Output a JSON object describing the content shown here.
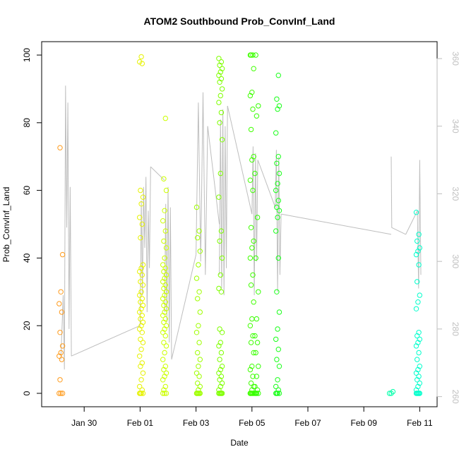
{
  "chart_data": {
    "type": "scatter",
    "title": "ATOM2 Southbound Prob_ConvInf_Land",
    "xlabel": "Date",
    "ylabel": "Prob_ConvInf_Land",
    "x_ticks": [
      "Jan 30",
      "Feb 01",
      "Feb 03",
      "Feb 05",
      "Feb 07",
      "Feb 09",
      "Feb 11"
    ],
    "ylim": [
      0,
      100
    ],
    "y_ticks": [
      "0",
      "20",
      "40",
      "60",
      "80",
      "100"
    ],
    "y2_ticks": [
      "260",
      "280",
      "300",
      "320",
      "340",
      "360"
    ],
    "y2lim": [
      257,
      365
    ],
    "grid": false,
    "legend": "none",
    "point_color_scale": [
      "#ff8c00",
      "#ffff00",
      "#00ff00",
      "#00ffcc"
    ],
    "secondary_line_color": "#bebebe",
    "clusters": [
      {
        "x": "2014-01-29 04:00",
        "color": "#ff9a1a",
        "y": [
          0,
          0,
          0,
          4,
          10,
          11,
          12,
          14,
          18,
          24,
          26.5,
          30,
          41,
          72.6
        ]
      },
      {
        "x": "2014-02-01 01:00",
        "color": "#e6f200",
        "y": [
          0,
          0,
          0,
          0,
          1,
          2,
          4,
          6,
          8,
          9,
          11,
          13,
          15,
          16,
          18,
          19,
          20,
          21,
          22,
          23,
          24,
          25,
          26,
          27,
          28,
          29,
          30,
          32,
          33,
          35,
          36,
          37,
          38,
          46,
          50,
          52,
          56,
          58,
          60,
          97.5,
          98,
          99.5
        ]
      },
      {
        "x": "2014-02-01 21:00",
        "color": "#ccff00",
        "y": [
          0,
          0,
          0,
          1,
          2,
          4,
          5,
          6,
          7,
          8,
          10,
          12,
          14,
          15,
          17,
          18,
          19,
          20,
          21,
          22,
          23,
          24,
          25,
          26,
          27,
          28,
          29,
          30,
          31,
          32,
          33,
          34,
          35,
          36,
          37,
          38,
          40,
          43,
          45,
          48,
          51,
          54,
          60,
          63.4,
          81.3
        ]
      },
      {
        "x": "2014-02-03 02:00",
        "color": "#9fff00",
        "y": [
          0,
          0,
          0,
          0,
          0,
          0,
          1,
          2,
          3,
          5,
          6,
          8,
          10,
          12,
          15,
          18,
          20,
          24,
          28,
          30,
          34,
          38,
          42,
          46,
          48,
          55
        ]
      },
      {
        "x": "2014-02-03 21:00",
        "color": "#7fff00",
        "y": [
          0,
          0,
          0,
          0,
          0,
          1,
          2,
          3,
          4,
          5,
          6,
          7,
          8,
          10,
          12,
          14,
          15,
          18,
          19,
          30,
          31,
          35,
          40,
          45,
          48,
          58,
          65,
          75,
          80,
          83,
          86,
          88,
          90,
          92,
          93,
          94,
          95,
          96,
          97,
          98,
          99
        ]
      },
      {
        "x": "2014-02-05 00:00",
        "color": "#40ff00",
        "y": [
          0,
          0,
          0,
          0,
          0,
          0,
          1,
          2,
          3,
          5,
          7,
          8,
          12,
          15,
          17,
          20,
          22,
          27,
          32,
          35,
          40,
          43,
          45,
          49,
          60,
          63,
          69,
          70,
          78,
          84,
          88,
          89,
          96,
          100,
          100,
          100
        ]
      },
      {
        "x": "2014-02-05 04:00",
        "color": "#33ff00",
        "y": [
          0,
          0,
          0,
          0,
          1,
          2,
          5,
          8,
          12,
          15,
          17,
          22,
          30,
          40,
          52,
          65,
          82,
          85,
          100
        ]
      },
      {
        "x": "2014-02-05 22:00",
        "color": "#1aff1a",
        "y": [
          0,
          0,
          0,
          0,
          1,
          2,
          4,
          8,
          10,
          13,
          16,
          19,
          24,
          30,
          40,
          48,
          52,
          54,
          55,
          57,
          60,
          62,
          65,
          68,
          70,
          77,
          84,
          85,
          87,
          94
        ]
      },
      {
        "x": "2014-02-09 23:30",
        "color": "#00ffaa",
        "y": [
          0,
          0,
          0.5
        ]
      },
      {
        "x": "2014-02-10 22:30",
        "color": "#00ffcc",
        "y": [
          0,
          0,
          0,
          0,
          0,
          1,
          2,
          3,
          4,
          5,
          6,
          7,
          8,
          10,
          12,
          14,
          15,
          16,
          17,
          18,
          25,
          27,
          29,
          33,
          38,
          41,
          42,
          43,
          45,
          47,
          53.5
        ]
      }
    ],
    "secondary_line": {
      "axis": "y2",
      "segments": [
        {
          "x": [
            "2014-01-29 04:00",
            "2014-01-29 06:00",
            "2014-01-29 07:00",
            "2014-01-29 08:00",
            "2014-01-29 09:00",
            "2014-01-29 10:00",
            "2014-01-29 11:00",
            "2014-01-29 12:00",
            "2014-01-29 13:00"
          ],
          "y": [
            271,
            290,
            268,
            352,
            310,
            347,
            280,
            322,
            272
          ]
        },
        {
          "x": [
            "2014-01-29 13:00",
            "2014-02-01 00:00"
          ],
          "y": [
            272,
            281
          ]
        },
        {
          "x": [
            "2014-02-01 00:00",
            "2014-02-01 01:00",
            "2014-02-01 02:00",
            "2014-02-01 03:00",
            "2014-02-01 04:00",
            "2014-02-01 05:00",
            "2014-02-01 06:00",
            "2014-02-01 07:00",
            "2014-02-01 08:00",
            "2014-02-01 09:00"
          ],
          "y": [
            281,
            318,
            290,
            322,
            304,
            325,
            285,
            315,
            298,
            328
          ]
        },
        {
          "x": [
            "2014-02-01 09:00",
            "2014-02-01 21:00"
          ],
          "y": [
            328,
            324
          ]
        },
        {
          "x": [
            "2014-02-01 21:00",
            "2014-02-01 22:00",
            "2014-02-01 23:00",
            "2014-02-02 00:00",
            "2014-02-02 01:00",
            "2014-02-02 02:00",
            "2014-02-02 03:00"
          ],
          "y": [
            285,
            317,
            282,
            322,
            276,
            316,
            271
          ]
        },
        {
          "x": [
            "2014-02-02 03:00",
            "2014-02-03 00:00"
          ],
          "y": [
            271,
            302
          ]
        },
        {
          "x": [
            "2014-02-03 00:00",
            "2014-02-03 02:00",
            "2014-02-03 04:00",
            "2014-02-03 06:00",
            "2014-02-03 08:00",
            "2014-02-03 10:00"
          ],
          "y": [
            302,
            347,
            300,
            350,
            296,
            340
          ]
        },
        {
          "x": [
            "2014-02-03 10:00",
            "2014-02-03 20:00"
          ],
          "y": [
            340,
            311
          ]
        },
        {
          "x": [
            "2014-02-03 20:00",
            "2014-02-03 21:00",
            "2014-02-03 22:00",
            "2014-02-03 23:00",
            "2014-02-04 00:00",
            "2014-02-04 01:00",
            "2014-02-04 02:00",
            "2014-02-04 03:00"
          ],
          "y": [
            296,
            342,
            292,
            345,
            290,
            340,
            298,
            346
          ]
        },
        {
          "x": [
            "2014-02-04 03:00",
            "2014-02-05 00:00"
          ],
          "y": [
            346,
            314
          ]
        },
        {
          "x": [
            "2014-02-05 00:00",
            "2014-02-05 01:00",
            "2014-02-05 02:00",
            "2014-02-05 03:00",
            "2014-02-05 04:00",
            "2014-02-05 05:00"
          ],
          "y": [
            314,
            334,
            290,
            332,
            300,
            330
          ]
        },
        {
          "x": [
            "2014-02-05 05:00",
            "2014-02-05 20:00"
          ],
          "y": [
            330,
            316
          ]
        },
        {
          "x": [
            "2014-02-05 20:00",
            "2014-02-05 21:00",
            "2014-02-05 22:00",
            "2014-02-05 23:00",
            "2014-02-06 00:00",
            "2014-02-06 01:00"
          ],
          "y": [
            316,
            333,
            291,
            331,
            296,
            314
          ]
        },
        {
          "x": [
            "2014-02-06 01:00",
            "2014-02-09 23:30"
          ],
          "y": [
            314,
            308
          ]
        },
        {
          "x": [
            "2014-02-09 23:30",
            "2014-02-10 00:00",
            "2014-02-10 12:00"
          ],
          "y": [
            331,
            310,
            308
          ]
        },
        {
          "x": [
            "2014-02-10 12:00",
            "2014-02-10 22:00",
            "2014-02-10 23:00",
            "2014-02-11 00:00",
            "2014-02-11 01:00"
          ],
          "y": [
            308,
            315,
            292,
            330,
            296
          ]
        }
      ]
    }
  }
}
